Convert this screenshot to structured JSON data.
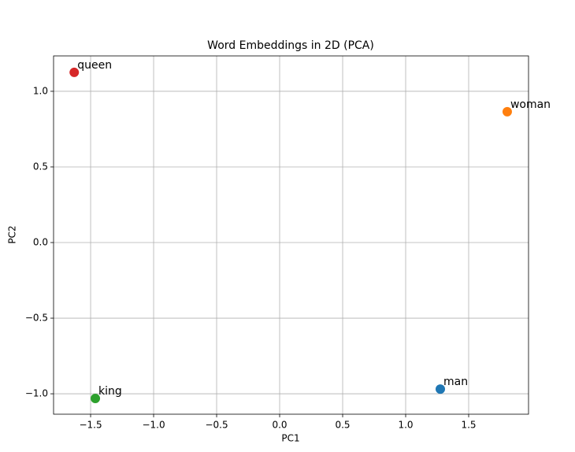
{
  "chart_data": {
    "type": "scatter",
    "title": "Word Embeddings in 2D (PCA)",
    "x_label": "PC1",
    "y_label": "PC2",
    "series": [
      {
        "name": "man",
        "color": "#1f77b4",
        "x": [
          1.275
        ],
        "values": [
          -0.969
        ]
      },
      {
        "name": "woman",
        "color": "#ff7f0e",
        "x": [
          1.806
        ],
        "values": [
          0.865
        ]
      },
      {
        "name": "king",
        "color": "#2ca02c",
        "x": [
          -1.4625
        ],
        "values": [
          -1.031
        ]
      },
      {
        "name": "queen",
        "color": "#d62728",
        "x": [
          -1.63
        ],
        "values": [
          1.125
        ]
      }
    ],
    "xlim": [
      -1.794,
      1.975
    ],
    "ylim": [
      -1.135,
      1.234
    ],
    "xticks": [
      {
        "value": -1.5,
        "label": "−1.5"
      },
      {
        "value": -1,
        "label": "−1.0"
      },
      {
        "value": -0.5,
        "label": "−0.5"
      },
      {
        "value": 0,
        "label": "0.0"
      },
      0.5,
      {
        "value": 1,
        "label": "1.0"
      },
      1.5
    ],
    "yticks": [
      {
        "value": -1,
        "label": "−1.0"
      },
      {
        "value": -0.5,
        "label": "−0.5"
      },
      {
        "value": 0,
        "label": "0.0"
      },
      0.5,
      {
        "value": 1,
        "label": "1.0"
      }
    ],
    "grid": true
  }
}
